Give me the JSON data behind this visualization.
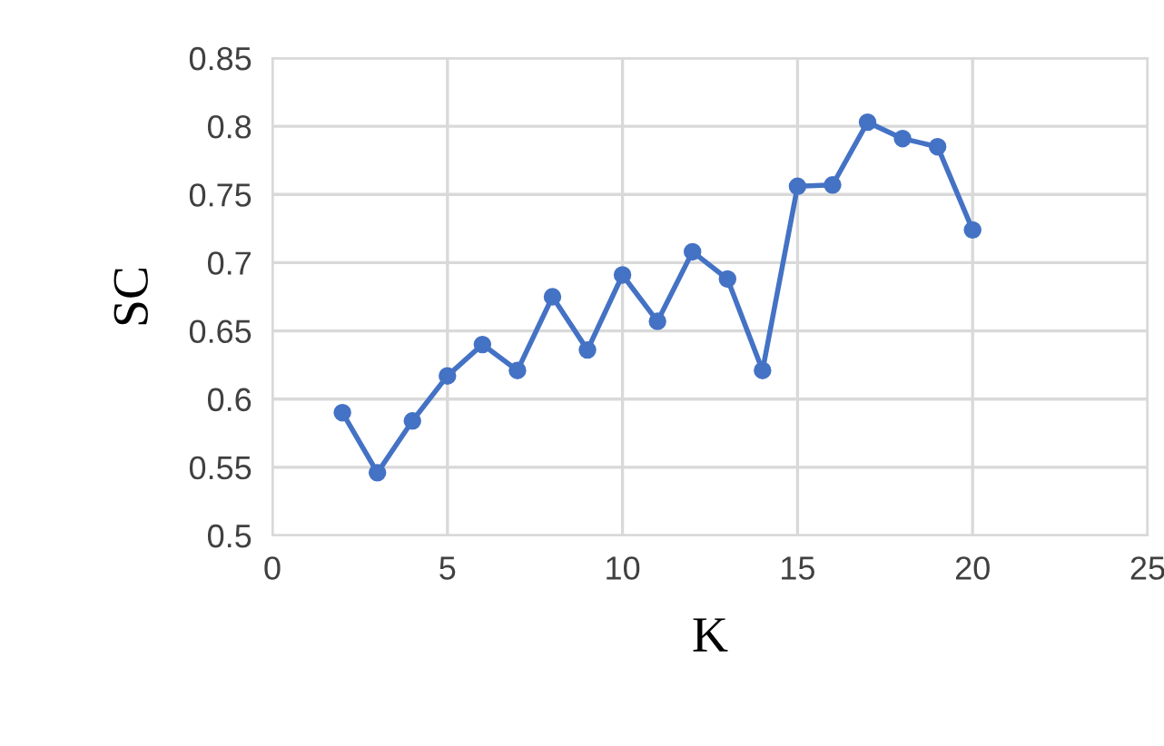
{
  "chart_data": {
    "type": "line",
    "xlabel": "K",
    "ylabel": "SC",
    "x": [
      2,
      3,
      4,
      5,
      6,
      7,
      8,
      9,
      10,
      11,
      12,
      13,
      14,
      15,
      16,
      17,
      18,
      19,
      20
    ],
    "series": [
      {
        "color": "#4472c4",
        "values": [
          0.59,
          0.546,
          0.584,
          0.617,
          0.64,
          0.621,
          0.675,
          0.636,
          0.691,
          0.657,
          0.708,
          0.688,
          0.621,
          0.756,
          0.757,
          0.803,
          0.791,
          0.785,
          0.724
        ]
      }
    ],
    "xlim": [
      0,
      25
    ],
    "xticks": [
      0,
      5,
      10,
      15,
      20,
      25
    ],
    "ylim": [
      0.5,
      0.85
    ],
    "yticks": [
      0.5,
      0.55,
      0.6,
      0.65,
      0.7,
      0.75,
      0.8,
      0.85
    ],
    "grid": true,
    "marker": "circle",
    "line_style": "solid"
  }
}
